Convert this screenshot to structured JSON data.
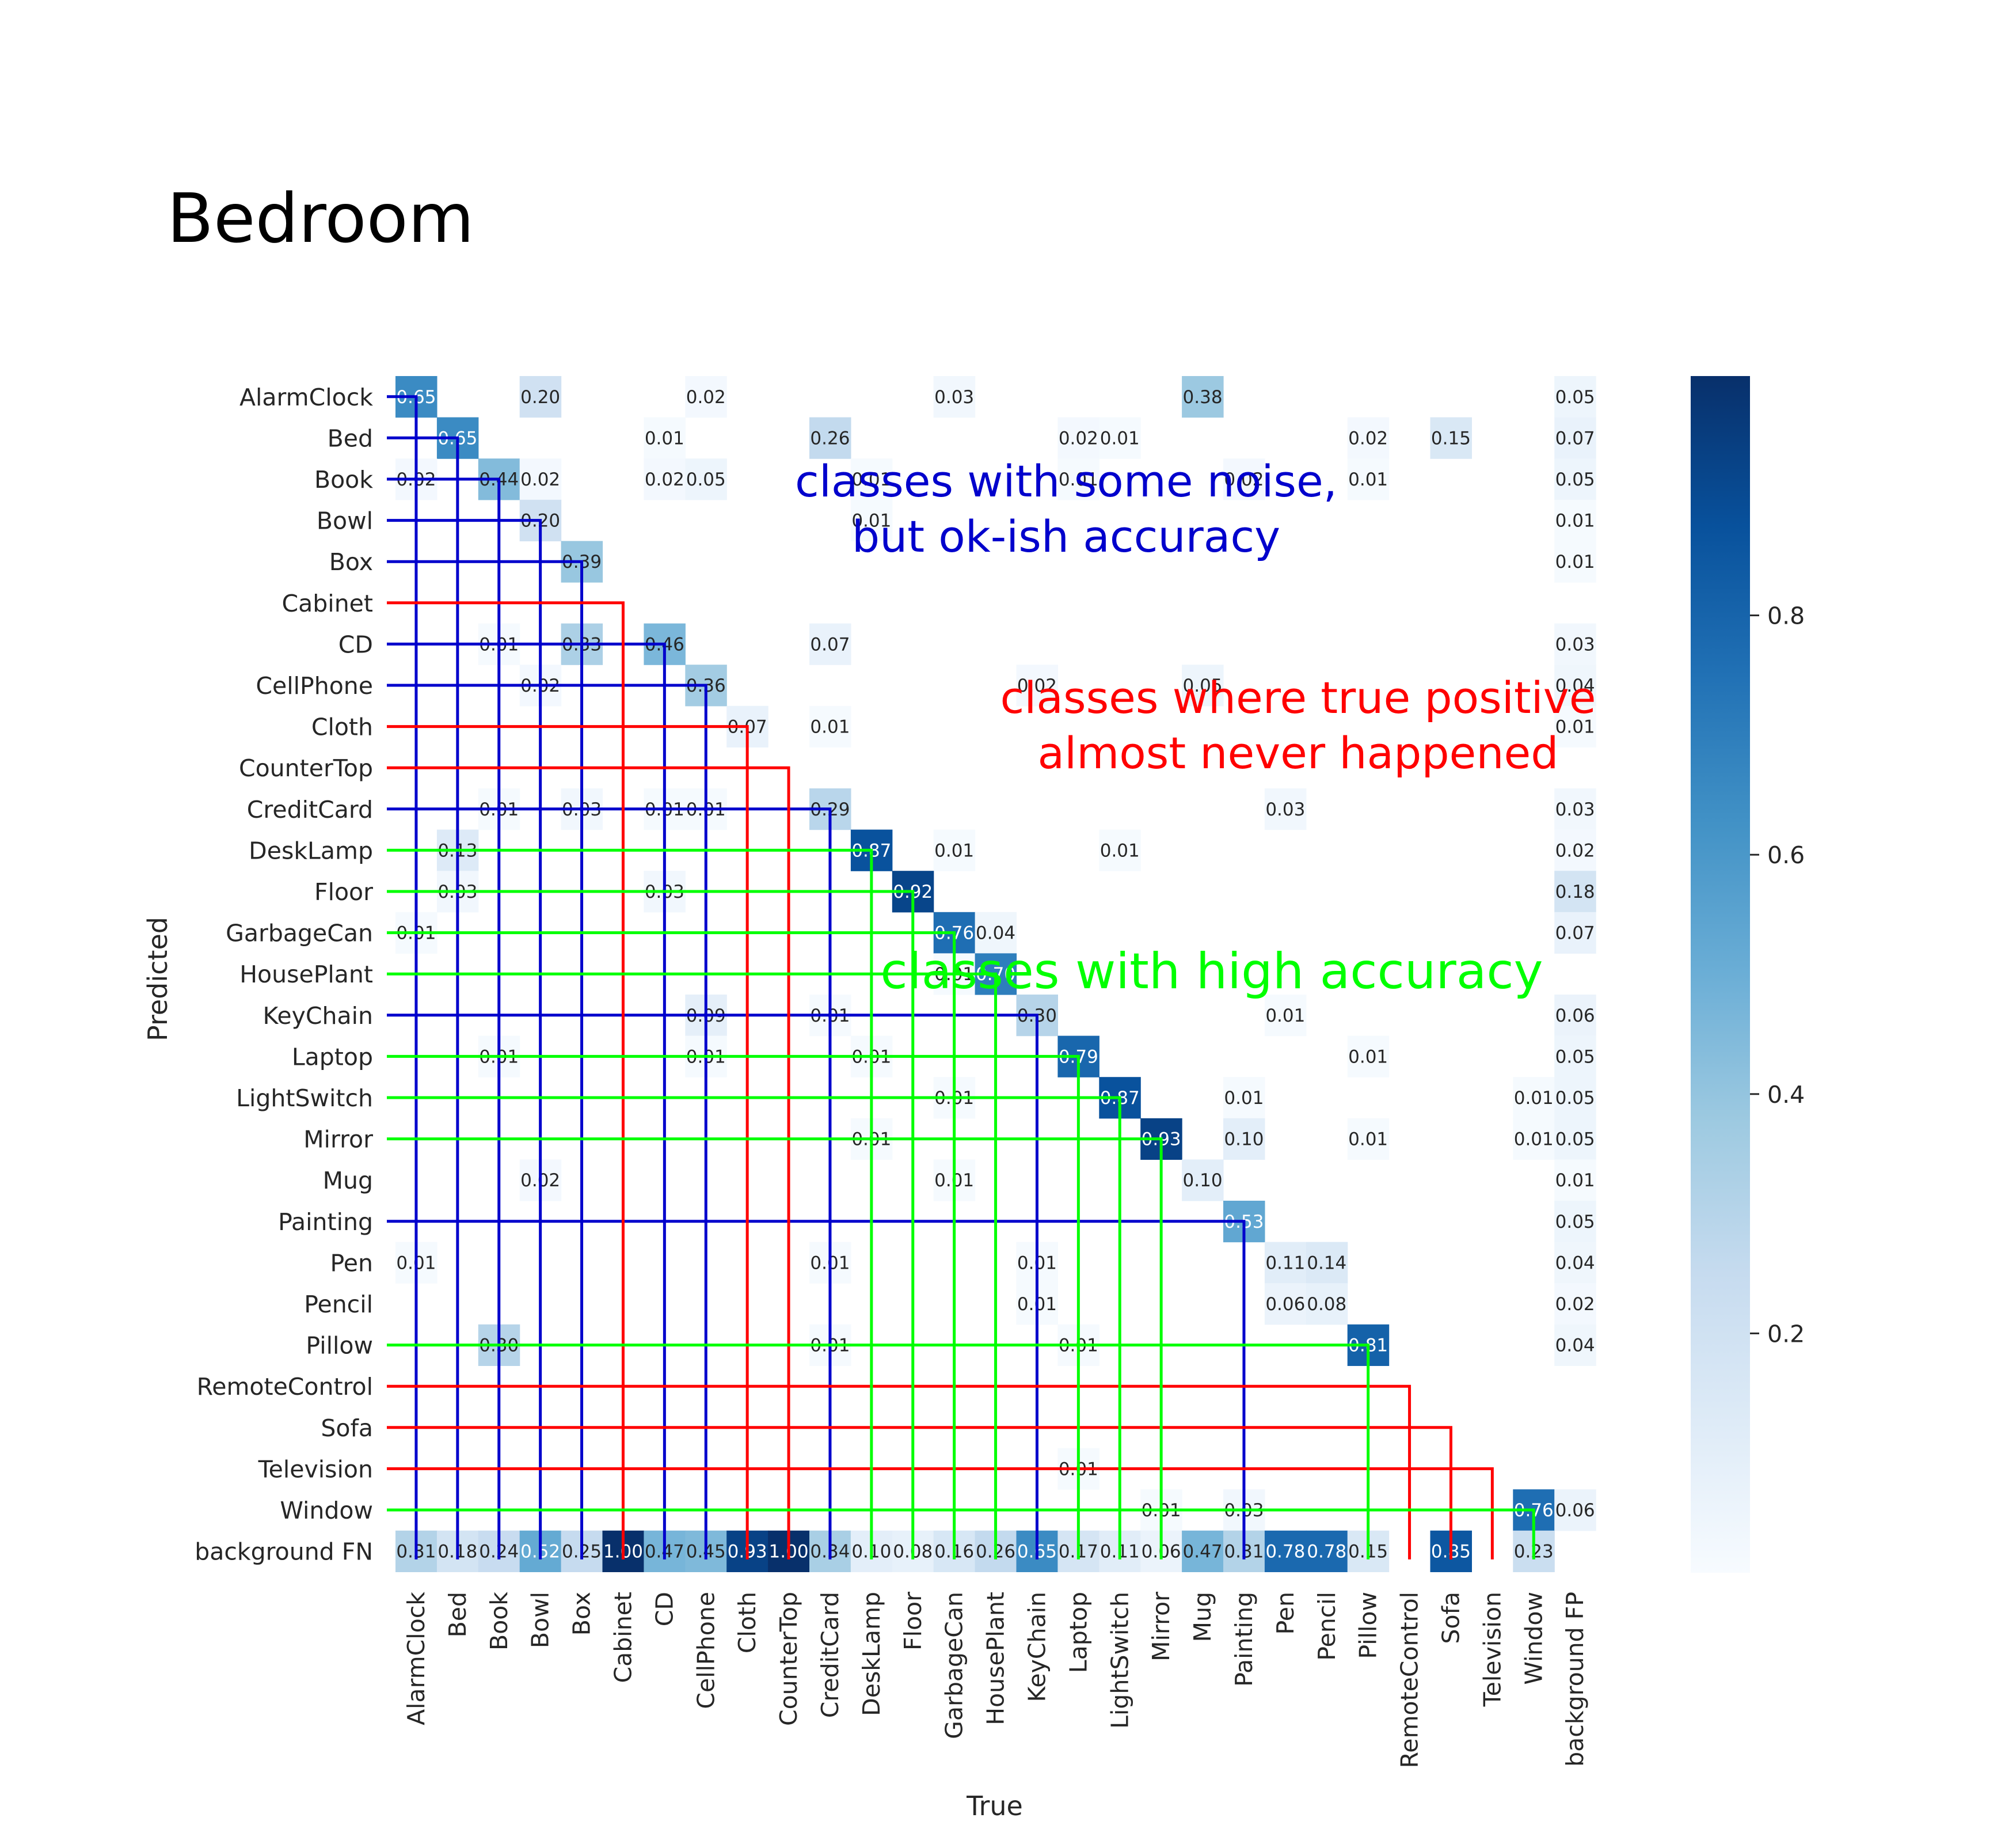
{
  "chart_data": {
    "type": "heatmap",
    "title": "Bedroom",
    "xlabel": "True",
    "ylabel": "Predicted",
    "x_categories": [
      "AlarmClock",
      "Bed",
      "Book",
      "Bowl",
      "Box",
      "Cabinet",
      "CD",
      "CellPhone",
      "Cloth",
      "CounterTop",
      "CreditCard",
      "DeskLamp",
      "Floor",
      "GarbageCan",
      "HousePlant",
      "KeyChain",
      "Laptop",
      "LightSwitch",
      "Mirror",
      "Mug",
      "Painting",
      "Pen",
      "Pencil",
      "Pillow",
      "RemoteControl",
      "Sofa",
      "Television",
      "Window",
      "background FP"
    ],
    "y_categories": [
      "AlarmClock",
      "Bed",
      "Book",
      "Bowl",
      "Box",
      "Cabinet",
      "CD",
      "CellPhone",
      "Cloth",
      "CounterTop",
      "CreditCard",
      "DeskLamp",
      "Floor",
      "GarbageCan",
      "HousePlant",
      "KeyChain",
      "Laptop",
      "LightSwitch",
      "Mirror",
      "Mug",
      "Painting",
      "Pen",
      "Pencil",
      "Pillow",
      "RemoteControl",
      "Sofa",
      "Television",
      "Window",
      "background FN"
    ],
    "cells": [
      {
        "row": 0,
        "col": 0,
        "value": 0.65,
        "label": "0.65"
      },
      {
        "row": 0,
        "col": 3,
        "value": 0.2,
        "label": "0.20"
      },
      {
        "row": 0,
        "col": 7,
        "value": 0.02,
        "label": "0.02"
      },
      {
        "row": 0,
        "col": 13,
        "value": 0.03,
        "label": "0.03"
      },
      {
        "row": 0,
        "col": 19,
        "value": 0.38,
        "label": "0.38"
      },
      {
        "row": 0,
        "col": 28,
        "value": 0.05,
        "label": "0.05"
      },
      {
        "row": 1,
        "col": 1,
        "value": 0.65,
        "label": "0.65"
      },
      {
        "row": 1,
        "col": 6,
        "value": 0.01,
        "label": "0.01"
      },
      {
        "row": 1,
        "col": 10,
        "value": 0.26,
        "label": "0.26"
      },
      {
        "row": 1,
        "col": 16,
        "value": 0.02,
        "label": "0.02"
      },
      {
        "row": 1,
        "col": 17,
        "value": 0.01,
        "label": "0.01"
      },
      {
        "row": 1,
        "col": 23,
        "value": 0.02,
        "label": "0.02"
      },
      {
        "row": 1,
        "col": 25,
        "value": 0.15,
        "label": "0.15"
      },
      {
        "row": 1,
        "col": 28,
        "value": 0.07,
        "label": "0.07"
      },
      {
        "row": 2,
        "col": 0,
        "value": 0.02,
        "label": "0.02"
      },
      {
        "row": 2,
        "col": 2,
        "value": 0.44,
        "label": "0.44"
      },
      {
        "row": 2,
        "col": 3,
        "value": 0.02,
        "label": "0.02"
      },
      {
        "row": 2,
        "col": 6,
        "value": 0.02,
        "label": "0.02"
      },
      {
        "row": 2,
        "col": 7,
        "value": 0.05,
        "label": "0.05"
      },
      {
        "row": 2,
        "col": 11,
        "value": 0.01,
        "label": "0.01"
      },
      {
        "row": 2,
        "col": 16,
        "value": 0.01,
        "label": "0.01"
      },
      {
        "row": 2,
        "col": 20,
        "value": 0.02,
        "label": "0.02"
      },
      {
        "row": 2,
        "col": 23,
        "value": 0.01,
        "label": "0.01"
      },
      {
        "row": 2,
        "col": 28,
        "value": 0.05,
        "label": "0.05"
      },
      {
        "row": 3,
        "col": 3,
        "value": 0.2,
        "label": "0.20"
      },
      {
        "row": 3,
        "col": 11,
        "value": 0.01,
        "label": "0.01"
      },
      {
        "row": 3,
        "col": 28,
        "value": 0.01,
        "label": "0.01"
      },
      {
        "row": 4,
        "col": 4,
        "value": 0.39,
        "label": "0.39"
      },
      {
        "row": 4,
        "col": 28,
        "value": 0.01,
        "label": "0.01"
      },
      {
        "row": 6,
        "col": 2,
        "value": 0.01,
        "label": "0.01"
      },
      {
        "row": 6,
        "col": 4,
        "value": 0.33,
        "label": "0.33"
      },
      {
        "row": 6,
        "col": 6,
        "value": 0.46,
        "label": "0.46"
      },
      {
        "row": 6,
        "col": 10,
        "value": 0.07,
        "label": "0.07"
      },
      {
        "row": 6,
        "col": 28,
        "value": 0.03,
        "label": "0.03"
      },
      {
        "row": 7,
        "col": 3,
        "value": 0.02,
        "label": "0.02"
      },
      {
        "row": 7,
        "col": 7,
        "value": 0.36,
        "label": "0.36"
      },
      {
        "row": 7,
        "col": 15,
        "value": 0.02,
        "label": "0.02"
      },
      {
        "row": 7,
        "col": 19,
        "value": 0.05,
        "label": "0.05"
      },
      {
        "row": 7,
        "col": 28,
        "value": 0.04,
        "label": "0.04"
      },
      {
        "row": 8,
        "col": 8,
        "value": 0.07,
        "label": "0.07"
      },
      {
        "row": 8,
        "col": 10,
        "value": 0.01,
        "label": "0.01"
      },
      {
        "row": 8,
        "col": 28,
        "value": 0.01,
        "label": "0.01"
      },
      {
        "row": 10,
        "col": 2,
        "value": 0.01,
        "label": "0.01"
      },
      {
        "row": 10,
        "col": 4,
        "value": 0.03,
        "label": "0.03"
      },
      {
        "row": 10,
        "col": 6,
        "value": 0.01,
        "label": "0.01"
      },
      {
        "row": 10,
        "col": 7,
        "value": 0.01,
        "label": "0.01"
      },
      {
        "row": 10,
        "col": 10,
        "value": 0.29,
        "label": "0.29"
      },
      {
        "row": 10,
        "col": 21,
        "value": 0.03,
        "label": "0.03"
      },
      {
        "row": 10,
        "col": 28,
        "value": 0.03,
        "label": "0.03"
      },
      {
        "row": 11,
        "col": 1,
        "value": 0.13,
        "label": "0.13"
      },
      {
        "row": 11,
        "col": 11,
        "value": 0.87,
        "label": "0.87"
      },
      {
        "row": 11,
        "col": 13,
        "value": 0.01,
        "label": "0.01"
      },
      {
        "row": 11,
        "col": 17,
        "value": 0.01,
        "label": "0.01"
      },
      {
        "row": 11,
        "col": 28,
        "value": 0.02,
        "label": "0.02"
      },
      {
        "row": 12,
        "col": 1,
        "value": 0.03,
        "label": "0.03"
      },
      {
        "row": 12,
        "col": 6,
        "value": 0.03,
        "label": "0.03"
      },
      {
        "row": 12,
        "col": 12,
        "value": 0.92,
        "label": "0.92"
      },
      {
        "row": 12,
        "col": 28,
        "value": 0.18,
        "label": "0.18"
      },
      {
        "row": 13,
        "col": 0,
        "value": 0.01,
        "label": "0.01"
      },
      {
        "row": 13,
        "col": 13,
        "value": 0.76,
        "label": "0.76"
      },
      {
        "row": 13,
        "col": 14,
        "value": 0.04,
        "label": "0.04"
      },
      {
        "row": 13,
        "col": 28,
        "value": 0.07,
        "label": "0.07"
      },
      {
        "row": 14,
        "col": 13,
        "value": 0.01,
        "label": "0.01"
      },
      {
        "row": 14,
        "col": 14,
        "value": 0.7,
        "label": "0.70"
      },
      {
        "row": 15,
        "col": 7,
        "value": 0.09,
        "label": "0.09"
      },
      {
        "row": 15,
        "col": 10,
        "value": 0.01,
        "label": "0.01"
      },
      {
        "row": 15,
        "col": 15,
        "value": 0.3,
        "label": "0.30"
      },
      {
        "row": 15,
        "col": 21,
        "value": 0.01,
        "label": "0.01"
      },
      {
        "row": 15,
        "col": 28,
        "value": 0.06,
        "label": "0.06"
      },
      {
        "row": 16,
        "col": 2,
        "value": 0.01,
        "label": "0.01"
      },
      {
        "row": 16,
        "col": 7,
        "value": 0.01,
        "label": "0.01"
      },
      {
        "row": 16,
        "col": 11,
        "value": 0.01,
        "label": "0.01"
      },
      {
        "row": 16,
        "col": 16,
        "value": 0.79,
        "label": "0.79"
      },
      {
        "row": 16,
        "col": 23,
        "value": 0.01,
        "label": "0.01"
      },
      {
        "row": 16,
        "col": 28,
        "value": 0.05,
        "label": "0.05"
      },
      {
        "row": 17,
        "col": 13,
        "value": 0.01,
        "label": "0.01"
      },
      {
        "row": 17,
        "col": 17,
        "value": 0.87,
        "label": "0.87"
      },
      {
        "row": 17,
        "col": 20,
        "value": 0.01,
        "label": "0.01"
      },
      {
        "row": 17,
        "col": 27,
        "value": 0.01,
        "label": "0.01"
      },
      {
        "row": 17,
        "col": 28,
        "value": 0.05,
        "label": "0.05"
      },
      {
        "row": 18,
        "col": 11,
        "value": 0.01,
        "label": "0.01"
      },
      {
        "row": 18,
        "col": 18,
        "value": 0.93,
        "label": "0.93"
      },
      {
        "row": 18,
        "col": 20,
        "value": 0.1,
        "label": "0.10"
      },
      {
        "row": 18,
        "col": 23,
        "value": 0.01,
        "label": "0.01"
      },
      {
        "row": 18,
        "col": 27,
        "value": 0.01,
        "label": "0.01"
      },
      {
        "row": 18,
        "col": 28,
        "value": 0.05,
        "label": "0.05"
      },
      {
        "row": 19,
        "col": 3,
        "value": 0.02,
        "label": "0.02"
      },
      {
        "row": 19,
        "col": 13,
        "value": 0.01,
        "label": "0.01"
      },
      {
        "row": 19,
        "col": 19,
        "value": 0.1,
        "label": "0.10"
      },
      {
        "row": 19,
        "col": 28,
        "value": 0.01,
        "label": "0.01"
      },
      {
        "row": 20,
        "col": 20,
        "value": 0.53,
        "label": "0.53"
      },
      {
        "row": 20,
        "col": 28,
        "value": 0.05,
        "label": "0.05"
      },
      {
        "row": 21,
        "col": 0,
        "value": 0.01,
        "label": "0.01"
      },
      {
        "row": 21,
        "col": 10,
        "value": 0.01,
        "label": "0.01"
      },
      {
        "row": 21,
        "col": 15,
        "value": 0.01,
        "label": "0.01"
      },
      {
        "row": 21,
        "col": 21,
        "value": 0.11,
        "label": "0.11"
      },
      {
        "row": 21,
        "col": 22,
        "value": 0.14,
        "label": "0.14"
      },
      {
        "row": 21,
        "col": 28,
        "value": 0.04,
        "label": "0.04"
      },
      {
        "row": 22,
        "col": 15,
        "value": 0.01,
        "label": "0.01"
      },
      {
        "row": 22,
        "col": 21,
        "value": 0.06,
        "label": "0.06"
      },
      {
        "row": 22,
        "col": 22,
        "value": 0.08,
        "label": "0.08"
      },
      {
        "row": 22,
        "col": 28,
        "value": 0.02,
        "label": "0.02"
      },
      {
        "row": 23,
        "col": 2,
        "value": 0.3,
        "label": "0.30"
      },
      {
        "row": 23,
        "col": 10,
        "value": 0.01,
        "label": "0.01"
      },
      {
        "row": 23,
        "col": 16,
        "value": 0.01,
        "label": "0.01"
      },
      {
        "row": 23,
        "col": 23,
        "value": 0.81,
        "label": "0.81"
      },
      {
        "row": 23,
        "col": 28,
        "value": 0.04,
        "label": "0.04"
      },
      {
        "row": 26,
        "col": 16,
        "value": 0.01,
        "label": "0.01"
      },
      {
        "row": 27,
        "col": 18,
        "value": 0.01,
        "label": "0.01"
      },
      {
        "row": 27,
        "col": 20,
        "value": 0.03,
        "label": "0.03"
      },
      {
        "row": 27,
        "col": 27,
        "value": 0.76,
        "label": "0.76"
      },
      {
        "row": 27,
        "col": 28,
        "value": 0.06,
        "label": "0.06"
      },
      {
        "row": 28,
        "col": 0,
        "value": 0.31,
        "label": "0.31"
      },
      {
        "row": 28,
        "col": 1,
        "value": 0.18,
        "label": "0.18"
      },
      {
        "row": 28,
        "col": 2,
        "value": 0.24,
        "label": "0.24"
      },
      {
        "row": 28,
        "col": 3,
        "value": 0.52,
        "label": "0.52"
      },
      {
        "row": 28,
        "col": 4,
        "value": 0.25,
        "label": "0.25"
      },
      {
        "row": 28,
        "col": 5,
        "value": 1.0,
        "label": "1.00"
      },
      {
        "row": 28,
        "col": 6,
        "value": 0.47,
        "label": "0.47"
      },
      {
        "row": 28,
        "col": 7,
        "value": 0.45,
        "label": "0.45"
      },
      {
        "row": 28,
        "col": 8,
        "value": 0.93,
        "label": "0.93"
      },
      {
        "row": 28,
        "col": 9,
        "value": 1.0,
        "label": "1.00"
      },
      {
        "row": 28,
        "col": 10,
        "value": 0.34,
        "label": "0.34"
      },
      {
        "row": 28,
        "col": 11,
        "value": 0.1,
        "label": "0.10"
      },
      {
        "row": 28,
        "col": 12,
        "value": 0.08,
        "label": "0.08"
      },
      {
        "row": 28,
        "col": 13,
        "value": 0.16,
        "label": "0.16"
      },
      {
        "row": 28,
        "col": 14,
        "value": 0.26,
        "label": "0.26"
      },
      {
        "row": 28,
        "col": 15,
        "value": 0.65,
        "label": "0.65"
      },
      {
        "row": 28,
        "col": 16,
        "value": 0.17,
        "label": "0.17"
      },
      {
        "row": 28,
        "col": 17,
        "value": 0.11,
        "label": "0.11"
      },
      {
        "row": 28,
        "col": 18,
        "value": 0.06,
        "label": "0.06"
      },
      {
        "row": 28,
        "col": 19,
        "value": 0.47,
        "label": "0.47"
      },
      {
        "row": 28,
        "col": 20,
        "value": 0.31,
        "label": "0.31"
      },
      {
        "row": 28,
        "col": 21,
        "value": 0.78,
        "label": "0.78"
      },
      {
        "row": 28,
        "col": 22,
        "value": 0.78,
        "label": "0.78"
      },
      {
        "row": 28,
        "col": 23,
        "value": 0.15,
        "label": "0.15"
      },
      {
        "row": 28,
        "col": 25,
        "value": 0.85,
        "label": "0.85"
      },
      {
        "row": 28,
        "col": 27,
        "value": 0.23,
        "label": "0.23"
      }
    ],
    "colorbar": {
      "cmap": "Blues",
      "range": [
        0.0,
        1.0
      ],
      "ticks": [
        0.2,
        0.4,
        0.6,
        0.8
      ],
      "tick_labels": [
        "0.2",
        "0.4",
        "0.6",
        "0.8"
      ]
    },
    "annotations": [
      {
        "group": "noise",
        "color": "#0000cc",
        "lines": [
          "classes with some noise,",
          "but ok-ish accuracy"
        ],
        "classes": [
          "AlarmClock",
          "Bed",
          "Book",
          "Bowl",
          "Box",
          "CD",
          "CellPhone",
          "CreditCard",
          "KeyChain",
          "Painting"
        ]
      },
      {
        "group": "never",
        "color": "#ff0000",
        "lines": [
          "classes where true positive",
          "almost never happened"
        ],
        "classes": [
          "Cabinet",
          "Cloth",
          "CounterTop",
          "RemoteControl",
          "Sofa",
          "Television"
        ]
      },
      {
        "group": "high",
        "color": "#00ff00",
        "lines": [
          "classes with high accuracy"
        ],
        "classes": [
          "DeskLamp",
          "Floor",
          "GarbageCan",
          "HousePlant",
          "Laptop",
          "LightSwitch",
          "Mirror",
          "Pillow",
          "Window"
        ]
      }
    ]
  }
}
